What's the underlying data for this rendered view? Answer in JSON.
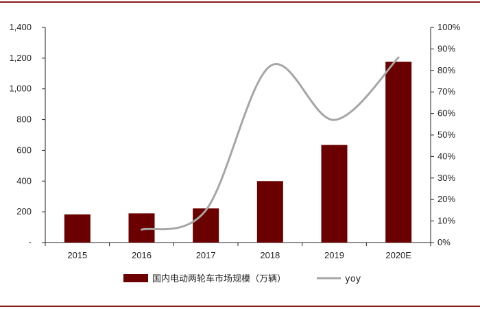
{
  "colors": {
    "frame": "#8b1a1a",
    "bar": "#6b0000",
    "line": "#a6a6a6",
    "axis": "#222222"
  },
  "chart_data": {
    "type": "bar",
    "categories": [
      "2015",
      "2016",
      "2017",
      "2018",
      "2019",
      "2020E"
    ],
    "series": [
      {
        "name": "国内电动两轮车市场规模（万辆）",
        "type": "bar",
        "axis": "left",
        "values": [
          183,
          190,
          222,
          400,
          635,
          1177
        ]
      },
      {
        "name": "yoy",
        "type": "line",
        "axis": "right",
        "smooth": true,
        "values": [
          null,
          6,
          15,
          82,
          57,
          86
        ]
      }
    ],
    "y_left": {
      "ylim": [
        0,
        1400
      ],
      "ticks": [
        0,
        200,
        400,
        600,
        800,
        1000,
        1200,
        1400
      ],
      "tick_labels": [
        "-",
        "200",
        "400",
        "600",
        "800",
        "1,000",
        "1,200",
        "1,400"
      ]
    },
    "y_right": {
      "ylim": [
        0,
        100
      ],
      "ticks": [
        0,
        10,
        20,
        30,
        40,
        50,
        60,
        70,
        80,
        90,
        100
      ],
      "tick_labels": [
        "0%",
        "10%",
        "20%",
        "30%",
        "40%",
        "50%",
        "60%",
        "70%",
        "80%",
        "90%",
        "100%"
      ]
    },
    "legend": {
      "placement": "bottom",
      "labels": [
        "国内电动两轮车市场规模（万辆）",
        "yoy"
      ]
    },
    "grid": false
  }
}
